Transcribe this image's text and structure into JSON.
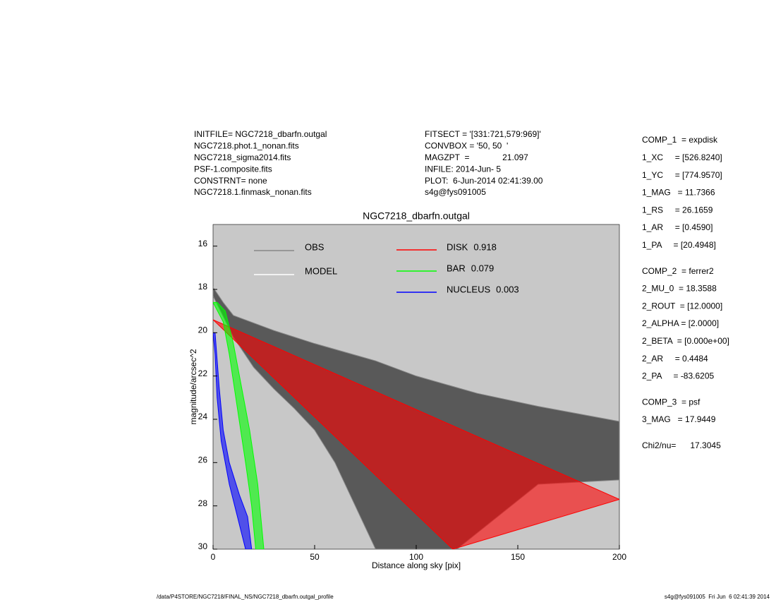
{
  "header": {
    "left": [
      "INITFILE= NGC7218_dbarfn.outgal",
      "NGC7218.phot.1_nonan.fits",
      "NGC7218_sigma2014.fits",
      "PSF-1.composite.fits",
      "CONSTRNT= none",
      "NGC7218.1.finmask_nonan.fits"
    ],
    "center": [
      "FITSECT = '[331:721,579:969]'",
      "CONVBOX = '50, 50  '",
      "MAGZPT  =              21.097",
      "INFILE: 2014-Jun- 5",
      "PLOT:  6-Jun-2014 02:41:39.00",
      "s4g@fys091005"
    ]
  },
  "params": [
    [
      "COMP_1  = expdisk",
      "1_XC     = [526.8240]",
      "1_YC     = [774.9570]",
      "1_MAG   = 11.7366",
      "1_RS     = 26.1659",
      "1_AR     = [0.4590]",
      "1_PA     = [20.4948]"
    ],
    [
      "COMP_2  = ferrer2",
      "2_MU_0  = 18.3588",
      "2_ROUT  = [12.0000]",
      "2_ALPHA = [2.0000]",
      "2_BETA  = [0.000e+00]",
      "2_AR     = 0.4484",
      "2_PA     = -83.6205"
    ],
    [
      "COMP_3  = psf",
      "3_MAG   = 17.9449"
    ],
    [
      "Chi2/nu=      17.3045"
    ]
  ],
  "footer": {
    "left": "/data/P4STORE/NGC7218/FINAL_NS/NGC7218_dbarfn.outgal_profile",
    "right": "s4g@fys091005  Fri Jun  6 02:41:39 2014"
  },
  "chart_data": {
    "type": "band",
    "title": "NGC7218_dbarfn.outgal",
    "x_label": "Distance along sky [pix]",
    "y_label": "magnitude/arcsec^2",
    "xlim": [
      0,
      200
    ],
    "xticks": [
      0,
      50,
      100,
      150,
      200
    ],
    "ylim": [
      30,
      15
    ],
    "yticks": [
      16,
      18,
      20,
      22,
      24,
      26,
      28,
      30
    ],
    "background": "#c8c8c8",
    "model_legend": {
      "name": "MODEL",
      "color": "#ffffff"
    },
    "series": [
      {
        "name": "OBS",
        "color": "#888888",
        "fill": "#454545",
        "upper": {
          "x": [
            0,
            5,
            10,
            30,
            50,
            80,
            100,
            130,
            160,
            200
          ],
          "values": [
            17.9,
            18.6,
            19.2,
            19.9,
            20.5,
            21.3,
            22.0,
            22.8,
            23.4,
            24.1
          ]
        },
        "lower": {
          "x": [
            0,
            10,
            20,
            30,
            40,
            50,
            60,
            70,
            80,
            120,
            160,
            200
          ],
          "values": [
            18.3,
            20.2,
            21.6,
            22.6,
            23.5,
            24.5,
            26,
            28,
            30,
            30,
            27,
            26.8
          ]
        }
      },
      {
        "name": "DISK",
        "fraction": 0.918,
        "color": "#ff0000",
        "upper": {
          "x": [
            0,
            200
          ],
          "values": [
            19.4,
            27.7
          ]
        },
        "lower": {
          "x": [
            0,
            118
          ],
          "values": [
            19.4,
            30
          ]
        }
      },
      {
        "name": "BAR",
        "fraction": 0.079,
        "color": "#00ff00",
        "upper": {
          "x": [
            2,
            6,
            10,
            14,
            18,
            22,
            25
          ],
          "values": [
            18.6,
            19,
            20.5,
            22.5,
            24.5,
            27,
            30
          ]
        },
        "lower": {
          "x": [
            0,
            5,
            8,
            12,
            16,
            19,
            21
          ],
          "values": [
            18.6,
            19.5,
            21,
            23.5,
            26,
            28,
            30
          ]
        }
      },
      {
        "name": "NUCLEUS",
        "fraction": 0.003,
        "color": "#0000ff",
        "upper": {
          "x": [
            1,
            3,
            5,
            8,
            13,
            17,
            19
          ],
          "values": [
            20,
            22.5,
            24.5,
            26,
            27.5,
            28.5,
            30
          ]
        },
        "lower": {
          "x": [
            0,
            1,
            2,
            4,
            8,
            12,
            16
          ],
          "values": [
            20,
            21,
            23,
            25,
            27,
            28.5,
            30
          ]
        }
      }
    ]
  }
}
